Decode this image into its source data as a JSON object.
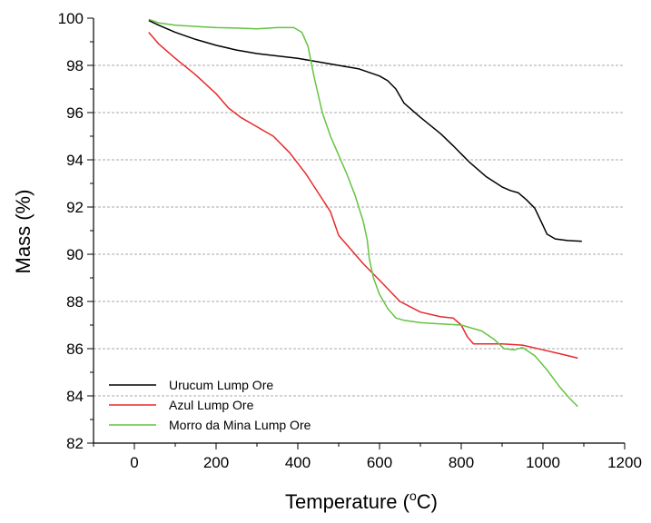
{
  "chart_data": {
    "type": "line",
    "xlabel": "Temperature (",
    "xlabel_sup": "o",
    "xlabel_end": "C)",
    "ylabel": "Mass (%)",
    "xlim": [
      -100,
      1200
    ],
    "ylim": [
      82,
      100
    ],
    "x_ticks": [
      0,
      200,
      400,
      600,
      800,
      1000,
      1200
    ],
    "y_ticks": [
      82,
      84,
      86,
      88,
      90,
      92,
      94,
      96,
      98,
      100
    ],
    "grid": "horizontal-dashed",
    "legend_position": "bottom-left",
    "series": [
      {
        "name": "Urucum Lump Ore",
        "color": "#000000",
        "points": [
          [
            35,
            99.9
          ],
          [
            60,
            99.7
          ],
          [
            100,
            99.4
          ],
          [
            150,
            99.1
          ],
          [
            200,
            98.85
          ],
          [
            250,
            98.65
          ],
          [
            300,
            98.5
          ],
          [
            350,
            98.4
          ],
          [
            400,
            98.3
          ],
          [
            450,
            98.15
          ],
          [
            500,
            98.0
          ],
          [
            550,
            97.85
          ],
          [
            600,
            97.55
          ],
          [
            620,
            97.35
          ],
          [
            640,
            97.0
          ],
          [
            660,
            96.4
          ],
          [
            700,
            95.8
          ],
          [
            750,
            95.1
          ],
          [
            780,
            94.6
          ],
          [
            820,
            93.9
          ],
          [
            860,
            93.3
          ],
          [
            900,
            92.85
          ],
          [
            920,
            92.7
          ],
          [
            940,
            92.6
          ],
          [
            960,
            92.3
          ],
          [
            980,
            91.95
          ],
          [
            995,
            91.4
          ],
          [
            1010,
            90.85
          ],
          [
            1030,
            90.65
          ],
          [
            1060,
            90.58
          ],
          [
            1095,
            90.55
          ]
        ]
      },
      {
        "name": "Azul Lump Ore",
        "color": "#e8282a",
        "points": [
          [
            35,
            99.4
          ],
          [
            60,
            98.9
          ],
          [
            100,
            98.3
          ],
          [
            150,
            97.6
          ],
          [
            200,
            96.8
          ],
          [
            230,
            96.2
          ],
          [
            260,
            95.8
          ],
          [
            300,
            95.4
          ],
          [
            340,
            95.0
          ],
          [
            380,
            94.3
          ],
          [
            420,
            93.4
          ],
          [
            450,
            92.6
          ],
          [
            480,
            91.8
          ],
          [
            490,
            91.3
          ],
          [
            500,
            90.8
          ],
          [
            530,
            90.2
          ],
          [
            560,
            89.6
          ],
          [
            600,
            88.9
          ],
          [
            650,
            88.0
          ],
          [
            700,
            87.55
          ],
          [
            750,
            87.35
          ],
          [
            780,
            87.3
          ],
          [
            800,
            87.0
          ],
          [
            815,
            86.5
          ],
          [
            830,
            86.2
          ],
          [
            900,
            86.2
          ],
          [
            950,
            86.15
          ],
          [
            1000,
            85.95
          ],
          [
            1050,
            85.75
          ],
          [
            1085,
            85.6
          ]
        ]
      },
      {
        "name": "Morro da Mina Lump Ore",
        "color": "#63c441",
        "points": [
          [
            35,
            99.95
          ],
          [
            60,
            99.8
          ],
          [
            100,
            99.7
          ],
          [
            150,
            99.65
          ],
          [
            200,
            99.6
          ],
          [
            250,
            99.58
          ],
          [
            300,
            99.55
          ],
          [
            350,
            99.6
          ],
          [
            390,
            99.6
          ],
          [
            410,
            99.4
          ],
          [
            425,
            98.8
          ],
          [
            440,
            97.5
          ],
          [
            460,
            96.0
          ],
          [
            480,
            95.0
          ],
          [
            500,
            94.2
          ],
          [
            520,
            93.4
          ],
          [
            540,
            92.5
          ],
          [
            560,
            91.4
          ],
          [
            570,
            90.6
          ],
          [
            575,
            89.8
          ],
          [
            585,
            89.0
          ],
          [
            600,
            88.3
          ],
          [
            620,
            87.7
          ],
          [
            640,
            87.3
          ],
          [
            660,
            87.2
          ],
          [
            700,
            87.1
          ],
          [
            750,
            87.05
          ],
          [
            800,
            87.0
          ],
          [
            850,
            86.75
          ],
          [
            880,
            86.4
          ],
          [
            905,
            86.0
          ],
          [
            930,
            85.95
          ],
          [
            950,
            86.05
          ],
          [
            980,
            85.7
          ],
          [
            1010,
            85.1
          ],
          [
            1040,
            84.4
          ],
          [
            1065,
            83.9
          ],
          [
            1085,
            83.55
          ]
        ]
      }
    ]
  }
}
